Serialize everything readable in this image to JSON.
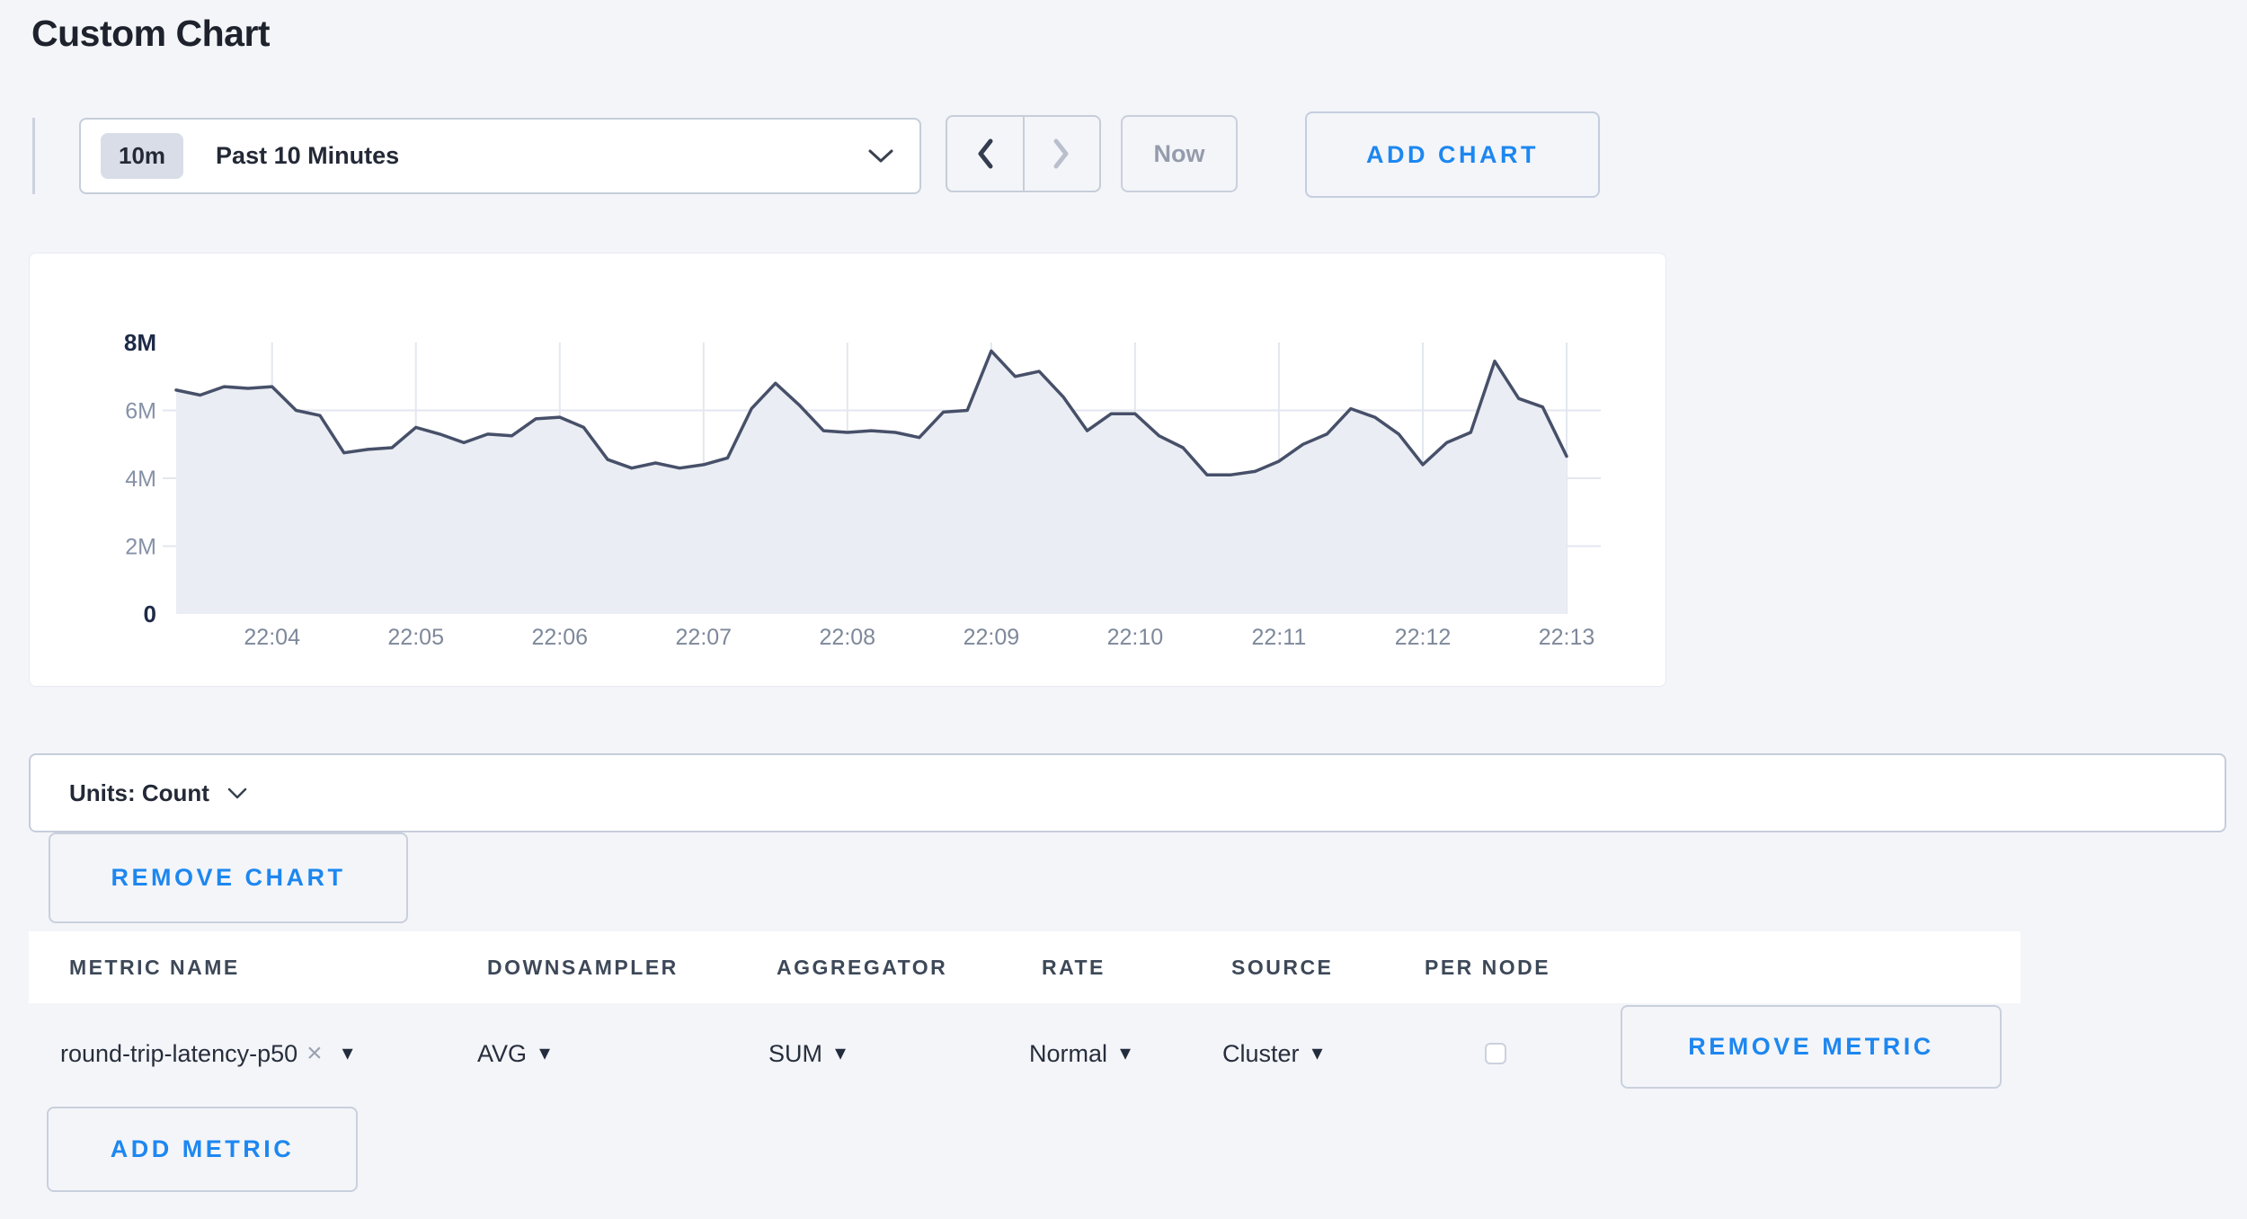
{
  "page": {
    "title": "Custom Chart"
  },
  "toolbar": {
    "time_badge": "10m",
    "time_label": "Past 10 Minutes",
    "now_label": "Now",
    "add_chart_label": "ADD CHART"
  },
  "icons": {
    "caret_down": "▾",
    "close": "×"
  },
  "chart_data": {
    "type": "area",
    "x_start": "22:03:20",
    "x_end": "22:13:00",
    "point_interval_sec": 10,
    "values_million": [
      6.6,
      6.45,
      6.7,
      6.65,
      6.7,
      6.0,
      5.85,
      4.75,
      4.85,
      4.9,
      5.5,
      5.3,
      5.05,
      5.3,
      5.25,
      5.75,
      5.8,
      5.5,
      4.55,
      4.3,
      4.45,
      4.3,
      4.4,
      4.6,
      6.05,
      6.8,
      6.15,
      5.4,
      5.35,
      5.4,
      5.35,
      5.2,
      5.95,
      6.0,
      7.75,
      7.0,
      7.15,
      6.4,
      5.4,
      5.9,
      5.9,
      5.25,
      4.9,
      4.1,
      4.1,
      4.2,
      4.5,
      5.0,
      5.3,
      6.05,
      5.8,
      5.3,
      4.4,
      5.05,
      5.35,
      7.45,
      6.35,
      6.1,
      4.65
    ],
    "x_ticks": [
      "22:04",
      "22:05",
      "22:06",
      "22:07",
      "22:08",
      "22:09",
      "22:10",
      "22:11",
      "22:12",
      "22:13"
    ],
    "x_first_tick_offset_sec": 40,
    "x_tick_interval_sec": 60,
    "y_ticks": [
      {
        "label": "0",
        "value": 0,
        "strong": true
      },
      {
        "label": "2M",
        "value": 2,
        "strong": false
      },
      {
        "label": "4M",
        "value": 4,
        "strong": false
      },
      {
        "label": "6M",
        "value": 6,
        "strong": false
      },
      {
        "label": "8M",
        "value": 8,
        "strong": true
      }
    ],
    "ylim_million": [
      0,
      8
    ],
    "y_gridlines": [
      2,
      4,
      6
    ],
    "grid_on": true,
    "legend": "none",
    "line_color": "#475069",
    "fill_color": "#eaedf3",
    "grid_color": "#e3e7ef"
  },
  "units_bar": {
    "label": "Units: Count"
  },
  "chart_actions": {
    "remove_chart_label": "REMOVE CHART",
    "add_metric_label": "ADD METRIC"
  },
  "metrics_table": {
    "columns": [
      "METRIC NAME",
      "DOWNSAMPLER",
      "AGGREGATOR",
      "RATE",
      "SOURCE",
      "PER NODE"
    ],
    "rows": [
      {
        "metric_name": "round-trip-latency-p50",
        "downsampler": "AVG",
        "aggregator": "SUM",
        "rate": "Normal",
        "source": "Cluster",
        "per_node_checked": false,
        "remove_label": "REMOVE METRIC"
      }
    ]
  }
}
